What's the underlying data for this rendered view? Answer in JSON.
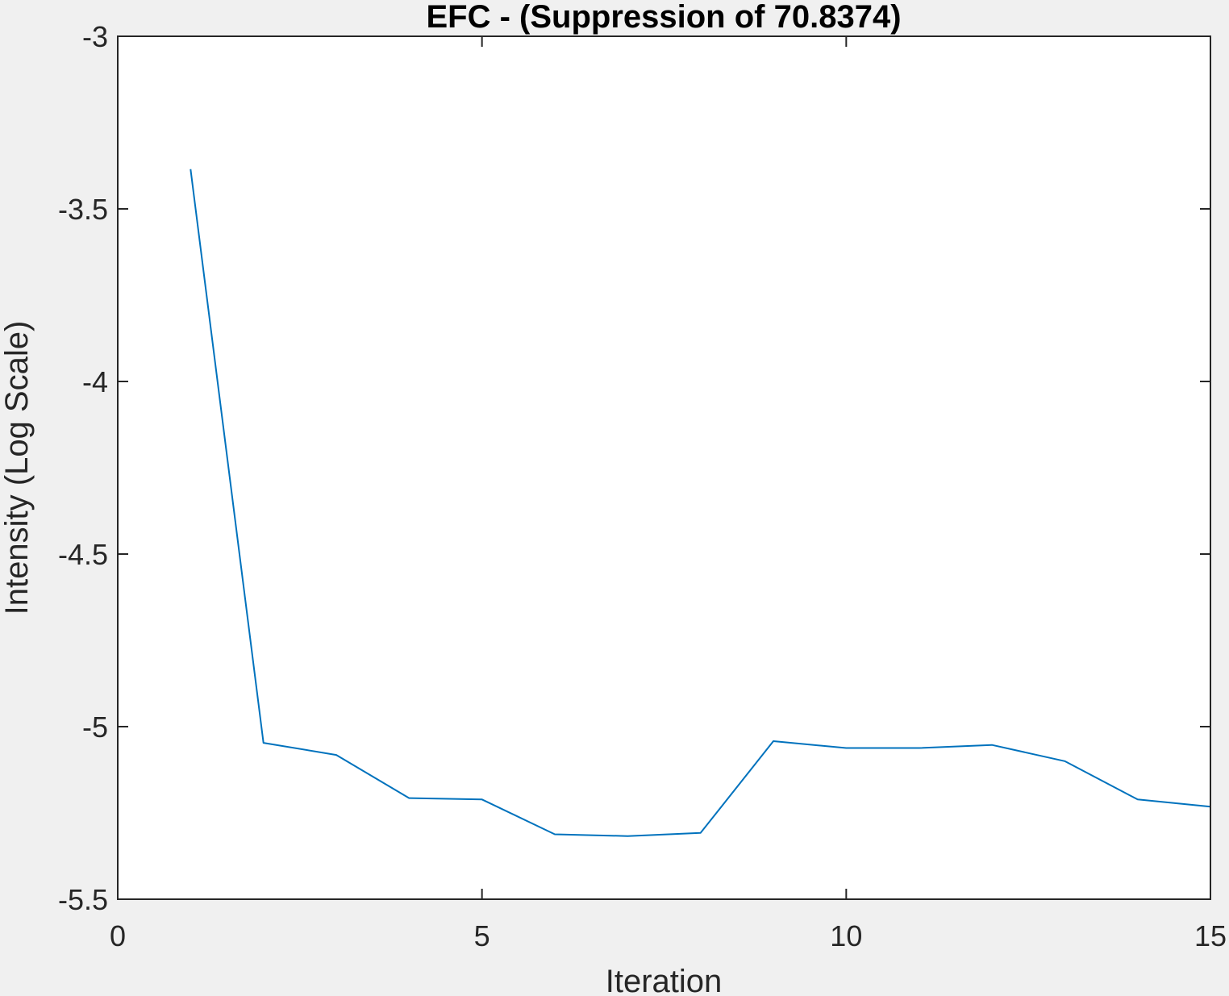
{
  "chart_data": {
    "type": "line",
    "title": "EFC -  (Suppression of 70.8374)",
    "xlabel": "Iteration",
    "ylabel": "Intensity (Log Scale)",
    "xlim": [
      0,
      15
    ],
    "ylim": [
      -5.5,
      -3
    ],
    "xticks": [
      0,
      5,
      10,
      15
    ],
    "xtick_labels": [
      "0",
      "5",
      "10",
      "15"
    ],
    "yticks": [
      -3,
      -3.5,
      -4,
      -4.5,
      -5,
      -5.5
    ],
    "ytick_labels": [
      "-3",
      "-3.5",
      "-4",
      "-4.5",
      "-5",
      "-5.5"
    ],
    "grid": false,
    "line_color": "#0072bd",
    "axes_color": "#262626",
    "plot_background": "#ffffff",
    "figure_background": "#f0f0f0",
    "series": [
      {
        "x": [
          1,
          2,
          3,
          4,
          5,
          6,
          7,
          8,
          9,
          10,
          11,
          12,
          13,
          14,
          15
        ],
        "values": [
          -3.385,
          -5.047,
          -5.082,
          -5.207,
          -5.211,
          -5.312,
          -5.317,
          -5.308,
          -5.042,
          -5.062,
          -5.062,
          -5.053,
          -5.1,
          -5.211,
          -5.232
        ]
      }
    ]
  }
}
